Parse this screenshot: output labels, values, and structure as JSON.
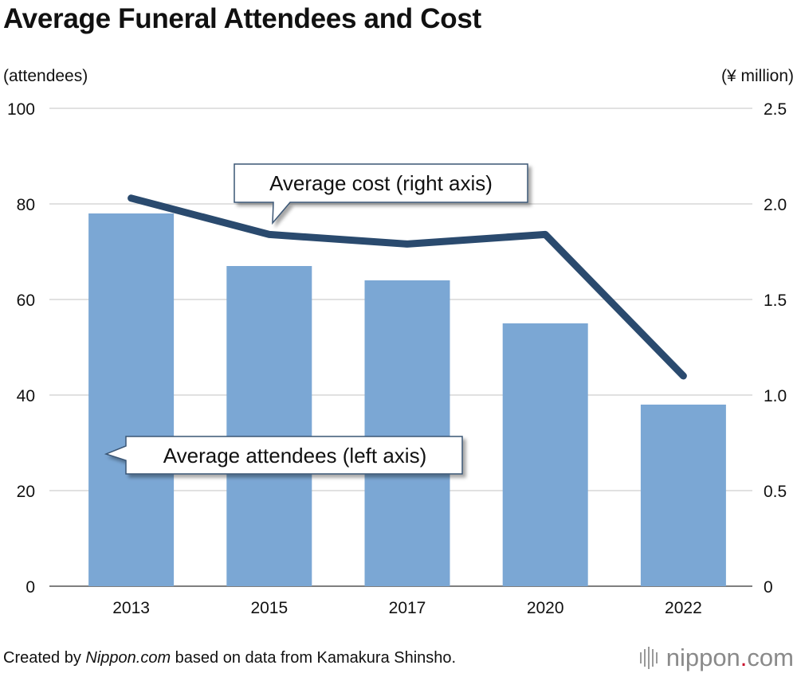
{
  "chart_data": {
    "type": "bar+line",
    "title": "Average Funeral Attendees and Cost",
    "categories": [
      "2013",
      "2015",
      "2017",
      "2020",
      "2022"
    ],
    "series": [
      {
        "name": "Average attendees (left axis)",
        "type": "bar",
        "axis": "left",
        "color": "#7BA7D4",
        "values": [
          78,
          67,
          64,
          55,
          38
        ]
      },
      {
        "name": "Average cost (right axis)",
        "type": "line",
        "axis": "right",
        "color": "#2A4A6E",
        "values": [
          2.03,
          1.84,
          1.79,
          1.84,
          1.1
        ]
      }
    ],
    "y_left": {
      "label": "(attendees)",
      "min": 0,
      "max": 100,
      "ticks": [
        "0",
        "20",
        "40",
        "60",
        "80",
        "100"
      ]
    },
    "y_right": {
      "label": "(¥ million)",
      "min": 0,
      "max": 2.5,
      "ticks": [
        "0",
        "0.5",
        "1.0",
        "1.5",
        "2.0",
        "2.5"
      ]
    },
    "callouts": {
      "cost": "Average cost (right axis)",
      "attendees": "Average attendees (left axis)"
    },
    "grid": true
  },
  "footer": {
    "prefix": "Created by ",
    "source_site": "Nippon.com",
    "suffix": " based on data from Kamakura Shinsho."
  },
  "brand": {
    "name": "nippon",
    "dot": ".",
    "tld": "com",
    "accent_color": "#c8102e"
  }
}
